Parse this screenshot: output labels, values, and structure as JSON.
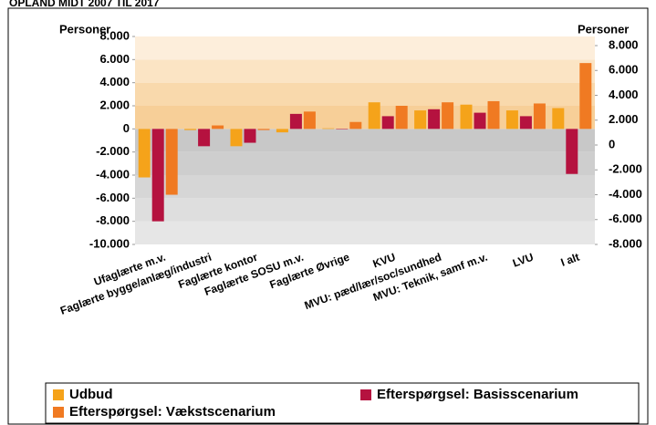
{
  "chart_data": {
    "type": "bar",
    "title": "OPLAND MIDT 2007 TIL 2017",
    "y_label": "Personer",
    "y2_label": "Personer",
    "categories": [
      "Ufaglærte m.v.",
      "Faglærte bygge/anlæg/industri",
      "Faglærte kontor",
      "Faglærte SOSU m.v.",
      "Faglærte Øvrige",
      "KVU",
      "MVU: pæd/lær/soc/sundhed",
      "MVU: Teknik, samf m.v.",
      "LVU",
      "I alt"
    ],
    "series": [
      {
        "name": "Udbud",
        "color": "#f5a31a",
        "values": [
          -4200,
          -100,
          -1500,
          -300,
          50,
          2300,
          1600,
          2100,
          1600,
          1800
        ]
      },
      {
        "name": "Efterspørgsel: Basisscenarium",
        "color": "#b5123f",
        "values": [
          -8000,
          -1500,
          -1200,
          1300,
          0,
          1100,
          1700,
          1400,
          1100,
          -3900
        ]
      },
      {
        "name": "Efterspørgsel: Vækstscenarium",
        "color": "#f07a22",
        "values": [
          -5700,
          300,
          -100,
          1500,
          600,
          2000,
          2300,
          2400,
          2200,
          5700
        ]
      }
    ],
    "ylim": [
      -10000,
      8000
    ],
    "yticks": [
      {
        "value": -10000,
        "label": "-10.000"
      },
      {
        "value": -8000,
        "label": "-8.000"
      },
      {
        "value": -6000,
        "label": "-6.000"
      },
      {
        "value": -4000,
        "label": "-4.000"
      },
      {
        "value": -2000,
        "label": "-2.000"
      },
      0,
      {
        "value": 2000,
        "label": "2.000"
      },
      {
        "value": 4000,
        "label": "4.000"
      },
      {
        "value": 6000,
        "label": "6.000"
      },
      {
        "value": 8000,
        "label": "8.000"
      }
    ],
    "y2lim": [
      -8000,
      8000
    ],
    "y2ticks": [
      {
        "value": -8000,
        "label": "-8.000"
      },
      {
        "value": -6000,
        "label": "-6.000"
      },
      {
        "value": -4000,
        "label": "-4.000"
      },
      {
        "value": -2000,
        "label": "-2.000"
      },
      0,
      {
        "value": 2000,
        "label": "2.000"
      },
      {
        "value": 4000,
        "label": "4.000"
      },
      {
        "value": 6000,
        "label": "6.000"
      },
      {
        "value": 8000,
        "label": "8.000"
      }
    ]
  }
}
